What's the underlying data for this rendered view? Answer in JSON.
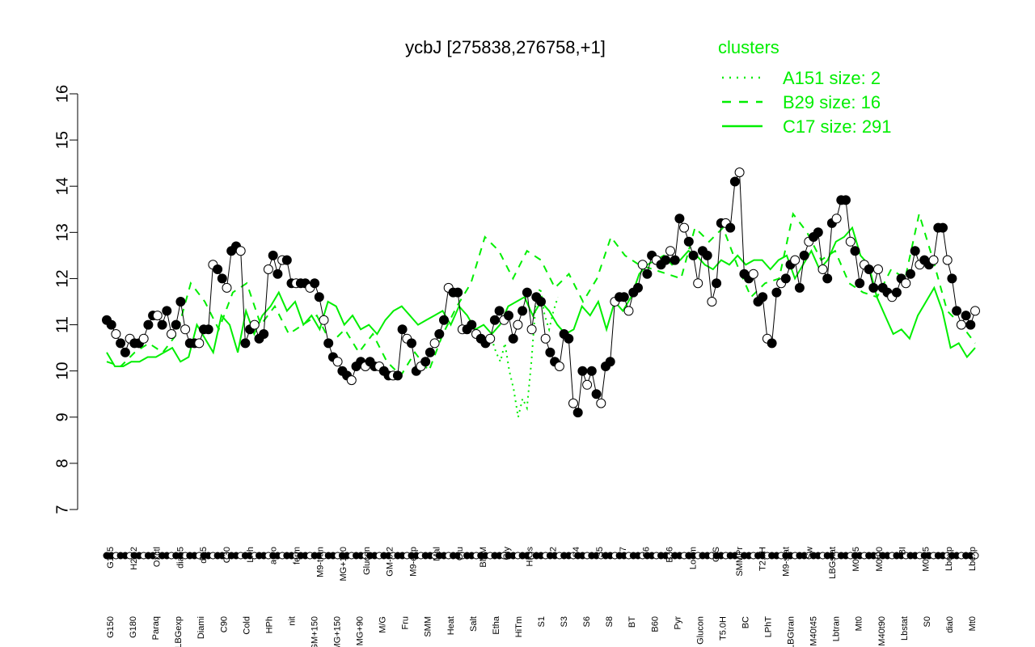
{
  "chart_data": {
    "type": "line",
    "title": "ycbJ [275838,276758,+1]",
    "xlabel": "",
    "ylabel": "",
    "ylim": [
      7,
      16
    ],
    "yticks": [
      7,
      8,
      9,
      10,
      11,
      12,
      13,
      14,
      15,
      16
    ],
    "grid": false,
    "legend": {
      "title": "clusters",
      "placement": "top-right",
      "color": "#00ee00",
      "entries": [
        {
          "label": "A151 size: 2",
          "style": "dotted"
        },
        {
          "label": "B29 size: 16",
          "style": "dashed"
        },
        {
          "label": "C17 size: 291",
          "style": "solid"
        }
      ]
    },
    "x_tick_labels_bottom": [
      "G150",
      "G180",
      "Paraq",
      "LBGexp",
      "Diami",
      "C90",
      "Cold",
      "HPh",
      "nit",
      "GM+150",
      "MG+150",
      "MG+90",
      "M/G",
      "Fru",
      "SMM",
      "Heat",
      "Salt",
      "Etha",
      "HiTm",
      "S1",
      "S3",
      "S6",
      "S8",
      "BT",
      "B60",
      "Pyr",
      "Glucon",
      "T5.0H",
      "BC",
      "LPhT",
      "LBGtran",
      "M40t45",
      "Lbtran",
      "Mt0",
      "M40t90",
      "Lbstat",
      "S0",
      "dia0",
      "Mt0"
    ],
    "x_tick_labels_top": [
      "G135",
      "H2O2",
      "Oxctl",
      "dia15",
      "dia5",
      "C30",
      "LPh",
      "aero",
      "ferm",
      "M9-tran",
      "MG+120",
      "Glucon",
      "GM-0.2",
      "M9-exp",
      "Mal",
      "Glu",
      "BMM",
      "Gly",
      "HiOs",
      "S2",
      "S4",
      "S5",
      "S7",
      "S6",
      "B36",
      "LoTm",
      "G/S",
      "SMMPr",
      "T2.0H",
      "M9-stat",
      "Sw",
      "LBGstat",
      "M0t45",
      "M0t90",
      "BI",
      "M0t45",
      "Lbexp",
      "Lbexp"
    ],
    "series": [
      {
        "name": "C17 size: 291",
        "color": "#00ee00",
        "style": "solid",
        "values": [
          10.4,
          10.1,
          10.1,
          10.2,
          10.2,
          10.3,
          10.3,
          10.4,
          10.5,
          10.2,
          10.3,
          11.0,
          10.7,
          10.4,
          11.2,
          11.0,
          10.4,
          11.3,
          10.8,
          11.2,
          11.4,
          11.7,
          11.3,
          11.5,
          11.0,
          11.2,
          10.9,
          11.5,
          11.4,
          11.0,
          11.2,
          10.9,
          11.0,
          10.8,
          11.1,
          11.3,
          11.4,
          11.2,
          11.0,
          11.1,
          11.2,
          11.3,
          11.0,
          11.4,
          11.2,
          10.9,
          11.0,
          10.8,
          11.0,
          11.4,
          11.5,
          11.6,
          11.2,
          11.5,
          11.3,
          11.0,
          10.8,
          10.9,
          11.4,
          11.2,
          11.5,
          10.9,
          11.5,
          11.3,
          11.6,
          12.1,
          12.3,
          12.4,
          12.5,
          12.3,
          12.4,
          12.6,
          12.5,
          12.3,
          12.2,
          12.4,
          12.3,
          12.5,
          12.3,
          12.4,
          12.4,
          12.2,
          12.4,
          12.5,
          12.0,
          12.3,
          12.6,
          12.2,
          12.4,
          12.8,
          12.9,
          13.1,
          12.5,
          12.3,
          11.6,
          11.2,
          10.8,
          10.9,
          10.7,
          11.2,
          11.5,
          11.8,
          11.3,
          10.5,
          10.6,
          10.3,
          10.5
        ]
      },
      {
        "name": "B29 size: 16",
        "color": "#00ee00",
        "style": "dashed",
        "values": [
          10.2,
          10.1,
          10.4,
          10.6,
          10.4,
          10.8,
          11.9,
          11.5,
          10.9,
          11.7,
          11.9,
          11.0,
          11.4,
          10.8,
          11.0,
          11.2,
          10.6,
          10.9,
          10.4,
          10.8,
          10.2,
          9.9,
          10.4,
          10.0,
          10.8,
          11.4,
          11.9,
          12.9,
          12.6,
          12.0,
          12.6,
          12.4,
          11.8,
          12.1,
          11.5,
          12.0,
          12.9,
          12.5,
          12.3,
          12.2,
          12.1,
          12.0,
          13.1,
          12.8,
          13.1,
          12.3,
          11.6,
          11.9,
          12.0,
          13.4,
          13.0,
          12.4,
          12.6,
          11.9,
          11.7,
          11.6,
          12.2,
          12.0,
          13.4,
          12.4,
          11.3,
          11.0,
          10.6
        ]
      },
      {
        "name": "A151 size: 2",
        "color": "#00ee00",
        "style": "dotted",
        "values": [
          10.7,
          10.4,
          10.2,
          10.6,
          10.0,
          9.6,
          9.0,
          9.4,
          9.2,
          10.2,
          11.5,
          11.8,
          11.2,
          10.9,
          11.3,
          11.6
        ]
      }
    ],
    "points": [
      {
        "x": 0,
        "y": 11.1
      },
      {
        "x": 1,
        "y": 11.0
      },
      {
        "x": 2,
        "y": 10.8
      },
      {
        "x": 3,
        "y": 10.6
      },
      {
        "x": 4,
        "y": 10.4
      },
      {
        "x": 5,
        "y": 10.7
      },
      {
        "x": 6,
        "y": 10.6
      },
      {
        "x": 7,
        "y": 10.6
      },
      {
        "x": 8,
        "y": 10.7
      },
      {
        "x": 9,
        "y": 11.0
      },
      {
        "x": 10,
        "y": 11.2
      },
      {
        "x": 11,
        "y": 11.2
      },
      {
        "x": 12,
        "y": 11.0
      },
      {
        "x": 13,
        "y": 11.3
      },
      {
        "x": 14,
        "y": 10.8
      },
      {
        "x": 15,
        "y": 11.0
      },
      {
        "x": 16,
        "y": 11.5
      },
      {
        "x": 17,
        "y": 10.9
      },
      {
        "x": 18,
        "y": 10.6
      },
      {
        "x": 19,
        "y": 10.6
      },
      {
        "x": 20,
        "y": 10.6
      },
      {
        "x": 21,
        "y": 10.9
      },
      {
        "x": 22,
        "y": 10.9
      },
      {
        "x": 23,
        "y": 12.3
      },
      {
        "x": 24,
        "y": 12.2
      },
      {
        "x": 25,
        "y": 12.0
      },
      {
        "x": 26,
        "y": 11.8
      },
      {
        "x": 27,
        "y": 12.6
      },
      {
        "x": 28,
        "y": 12.7
      },
      {
        "x": 29,
        "y": 12.6
      },
      {
        "x": 30,
        "y": 10.6
      },
      {
        "x": 31,
        "y": 10.9
      },
      {
        "x": 32,
        "y": 11.0
      },
      {
        "x": 33,
        "y": 10.7
      },
      {
        "x": 34,
        "y": 10.8
      },
      {
        "x": 35,
        "y": 12.2
      },
      {
        "x": 36,
        "y": 12.5
      },
      {
        "x": 37,
        "y": 12.1
      },
      {
        "x": 38,
        "y": 12.4
      },
      {
        "x": 39,
        "y": 12.4
      },
      {
        "x": 40,
        "y": 11.9
      },
      {
        "x": 41,
        "y": 11.9
      },
      {
        "x": 42,
        "y": 11.9
      },
      {
        "x": 43,
        "y": 11.9
      },
      {
        "x": 44,
        "y": 11.8
      },
      {
        "x": 45,
        "y": 11.9
      },
      {
        "x": 46,
        "y": 11.6
      },
      {
        "x": 47,
        "y": 11.1
      },
      {
        "x": 48,
        "y": 10.6
      },
      {
        "x": 49,
        "y": 10.3
      },
      {
        "x": 50,
        "y": 10.2
      },
      {
        "x": 51,
        "y": 10.0
      },
      {
        "x": 52,
        "y": 9.9
      },
      {
        "x": 53,
        "y": 9.8
      },
      {
        "x": 54,
        "y": 10.1
      },
      {
        "x": 55,
        "y": 10.2
      },
      {
        "x": 56,
        "y": 10.1
      },
      {
        "x": 57,
        "y": 10.2
      },
      {
        "x": 58,
        "y": 10.1
      },
      {
        "x": 59,
        "y": 10.1
      },
      {
        "x": 60,
        "y": 10.0
      },
      {
        "x": 61,
        "y": 9.9
      },
      {
        "x": 62,
        "y": 9.9
      },
      {
        "x": 63,
        "y": 9.9
      },
      {
        "x": 64,
        "y": 10.9
      },
      {
        "x": 65,
        "y": 10.7
      },
      {
        "x": 66,
        "y": 10.6
      },
      {
        "x": 67,
        "y": 10.0
      },
      {
        "x": 68,
        "y": 10.1
      },
      {
        "x": 69,
        "y": 10.2
      },
      {
        "x": 70,
        "y": 10.4
      },
      {
        "x": 71,
        "y": 10.6
      },
      {
        "x": 72,
        "y": 10.8
      },
      {
        "x": 73,
        "y": 11.1
      },
      {
        "x": 74,
        "y": 11.8
      },
      {
        "x": 75,
        "y": 11.7
      },
      {
        "x": 76,
        "y": 11.7
      },
      {
        "x": 77,
        "y": 10.9
      },
      {
        "x": 78,
        "y": 10.9
      },
      {
        "x": 79,
        "y": 11.0
      },
      {
        "x": 80,
        "y": 10.8
      },
      {
        "x": 81,
        "y": 10.7
      },
      {
        "x": 82,
        "y": 10.6
      },
      {
        "x": 83,
        "y": 10.7
      },
      {
        "x": 84,
        "y": 11.1
      },
      {
        "x": 85,
        "y": 11.3
      },
      {
        "x": 86,
        "y": 11.1
      },
      {
        "x": 87,
        "y": 11.2
      },
      {
        "x": 88,
        "y": 10.7
      },
      {
        "x": 89,
        "y": 11.0
      },
      {
        "x": 90,
        "y": 11.3
      },
      {
        "x": 91,
        "y": 11.7
      },
      {
        "x": 92,
        "y": 10.9
      },
      {
        "x": 93,
        "y": 11.6
      },
      {
        "x": 94,
        "y": 11.5
      },
      {
        "x": 95,
        "y": 10.7
      },
      {
        "x": 96,
        "y": 10.4
      },
      {
        "x": 97,
        "y": 10.2
      },
      {
        "x": 98,
        "y": 10.1
      },
      {
        "x": 99,
        "y": 10.8
      },
      {
        "x": 100,
        "y": 10.7
      },
      {
        "x": 101,
        "y": 9.3
      },
      {
        "x": 102,
        "y": 9.1
      },
      {
        "x": 103,
        "y": 10.0
      },
      {
        "x": 104,
        "y": 9.7
      },
      {
        "x": 105,
        "y": 10.0
      },
      {
        "x": 106,
        "y": 9.5
      },
      {
        "x": 107,
        "y": 9.3
      },
      {
        "x": 108,
        "y": 10.1
      },
      {
        "x": 109,
        "y": 10.2
      },
      {
        "x": 110,
        "y": 11.5
      },
      {
        "x": 111,
        "y": 11.6
      },
      {
        "x": 112,
        "y": 11.6
      },
      {
        "x": 113,
        "y": 11.3
      },
      {
        "x": 114,
        "y": 11.7
      },
      {
        "x": 115,
        "y": 11.8
      },
      {
        "x": 116,
        "y": 12.3
      },
      {
        "x": 117,
        "y": 12.1
      },
      {
        "x": 118,
        "y": 12.5
      },
      {
        "x": 119,
        "y": 12.4
      },
      {
        "x": 120,
        "y": 12.3
      },
      {
        "x": 121,
        "y": 12.4
      },
      {
        "x": 122,
        "y": 12.6
      },
      {
        "x": 123,
        "y": 12.4
      },
      {
        "x": 124,
        "y": 13.3
      },
      {
        "x": 125,
        "y": 13.1
      },
      {
        "x": 126,
        "y": 12.8
      },
      {
        "x": 127,
        "y": 12.5
      },
      {
        "x": 128,
        "y": 11.9
      },
      {
        "x": 129,
        "y": 12.6
      },
      {
        "x": 130,
        "y": 12.5
      },
      {
        "x": 131,
        "y": 11.5
      },
      {
        "x": 132,
        "y": 11.9
      },
      {
        "x": 133,
        "y": 13.2
      },
      {
        "x": 134,
        "y": 13.2
      },
      {
        "x": 135,
        "y": 13.1
      },
      {
        "x": 136,
        "y": 14.1
      },
      {
        "x": 137,
        "y": 14.3
      },
      {
        "x": 138,
        "y": 12.1
      },
      {
        "x": 139,
        "y": 12.0
      },
      {
        "x": 140,
        "y": 12.1
      },
      {
        "x": 141,
        "y": 11.5
      },
      {
        "x": 142,
        "y": 11.6
      },
      {
        "x": 143,
        "y": 10.7
      },
      {
        "x": 144,
        "y": 10.6
      },
      {
        "x": 145,
        "y": 11.7
      },
      {
        "x": 146,
        "y": 11.9
      },
      {
        "x": 147,
        "y": 12.0
      },
      {
        "x": 148,
        "y": 12.3
      },
      {
        "x": 149,
        "y": 12.4
      },
      {
        "x": 150,
        "y": 11.8
      },
      {
        "x": 151,
        "y": 12.5
      },
      {
        "x": 152,
        "y": 12.8
      },
      {
        "x": 153,
        "y": 12.9
      },
      {
        "x": 154,
        "y": 13.0
      },
      {
        "x": 155,
        "y": 12.2
      },
      {
        "x": 156,
        "y": 12.0
      },
      {
        "x": 157,
        "y": 13.2
      },
      {
        "x": 158,
        "y": 13.3
      },
      {
        "x": 159,
        "y": 13.7
      },
      {
        "x": 160,
        "y": 13.7
      },
      {
        "x": 161,
        "y": 12.8
      },
      {
        "x": 162,
        "y": 12.6
      },
      {
        "x": 163,
        "y": 11.9
      },
      {
        "x": 164,
        "y": 12.3
      },
      {
        "x": 165,
        "y": 12.2
      },
      {
        "x": 166,
        "y": 11.8
      },
      {
        "x": 167,
        "y": 12.2
      },
      {
        "x": 168,
        "y": 11.8
      },
      {
        "x": 169,
        "y": 11.7
      },
      {
        "x": 170,
        "y": 11.6
      },
      {
        "x": 171,
        "y": 11.7
      },
      {
        "x": 172,
        "y": 12.0
      },
      {
        "x": 173,
        "y": 11.9
      },
      {
        "x": 174,
        "y": 12.1
      },
      {
        "x": 175,
        "y": 12.6
      },
      {
        "x": 176,
        "y": 12.3
      },
      {
        "x": 177,
        "y": 12.4
      },
      {
        "x": 178,
        "y": 12.3
      },
      {
        "x": 179,
        "y": 12.4
      },
      {
        "x": 180,
        "y": 13.1
      },
      {
        "x": 181,
        "y": 13.1
      },
      {
        "x": 182,
        "y": 12.4
      },
      {
        "x": 183,
        "y": 12.0
      },
      {
        "x": 184,
        "y": 11.3
      },
      {
        "x": 185,
        "y": 11.0
      },
      {
        "x": 186,
        "y": 11.2
      },
      {
        "x": 187,
        "y": 11.0
      },
      {
        "x": 188,
        "y": 11.3
      }
    ]
  }
}
